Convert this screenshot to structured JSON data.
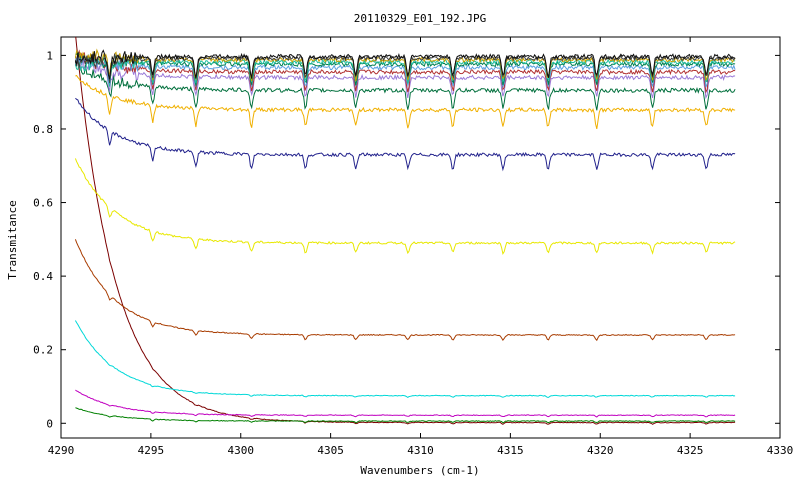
{
  "chart_data": {
    "type": "line",
    "title": "20110329_E01_192.JPG",
    "xlabel": "Wavenumbers (cm-1)",
    "ylabel": "Transmitance",
    "xlim": [
      4290,
      4330
    ],
    "ylim": [
      -0.04,
      1.05
    ],
    "xticks": [
      4290,
      4295,
      4300,
      4305,
      4310,
      4315,
      4320,
      4325,
      4330
    ],
    "yticks": [
      0,
      0.2,
      0.4,
      0.6,
      0.8,
      1
    ],
    "ytick_labels": [
      "0",
      "0.2",
      "0.4",
      "0.6",
      "0.8",
      "1"
    ],
    "grid": false,
    "legend": "none",
    "x_range_data": [
      4290.8,
      4327.5
    ],
    "absorption_lines": [
      4292.7,
      4295.1,
      4297.5,
      4300.6,
      4303.6,
      4306.4,
      4309.3,
      4311.8,
      4314.6,
      4317.1,
      4319.8,
      4322.9,
      4325.9
    ],
    "series": [
      {
        "color": "#7b0000",
        "start": 1.06,
        "plateau": 0.002
      },
      {
        "color": "#008000",
        "start": 0.042,
        "plateau": 0.006
      },
      {
        "color": "#c000c0",
        "start": 0.09,
        "plateau": 0.022
      },
      {
        "color": "#00d8d8",
        "start": 0.28,
        "plateau": 0.075
      },
      {
        "color": "#a83c00",
        "start": 0.5,
        "plateau": 0.24
      },
      {
        "color": "#e8e800",
        "start": 0.72,
        "plateau": 0.49
      },
      {
        "color": "#22228c",
        "start": 0.885,
        "plateau": 0.73
      },
      {
        "color": "#f0b000",
        "start": 0.945,
        "plateau": 0.852
      },
      {
        "color": "#006f3c",
        "start": 0.975,
        "plateau": 0.905
      },
      {
        "color": "#9a7ad8",
        "start": 0.985,
        "plateau": 0.94
      },
      {
        "color": "#b03030",
        "start": 1.0,
        "plateau": 0.955
      },
      {
        "color": "#5aa0e0",
        "start": 0.99,
        "plateau": 0.967
      },
      {
        "color": "#008050",
        "start": 0.995,
        "plateau": 0.976
      },
      {
        "color": "#20c0a0",
        "start": 0.975,
        "plateau": 0.982
      },
      {
        "color": "#c8a000",
        "start": 1.0,
        "plateau": 0.988
      },
      {
        "color": "#404040",
        "start": 0.98,
        "plateau": 0.993
      },
      {
        "color": "#101010",
        "start": 0.99,
        "plateau": 0.997
      }
    ]
  }
}
